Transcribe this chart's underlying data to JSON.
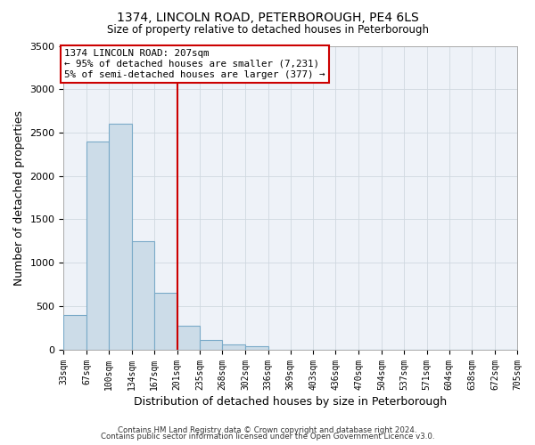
{
  "title": "1374, LINCOLN ROAD, PETERBOROUGH, PE4 6LS",
  "subtitle": "Size of property relative to detached houses in Peterborough",
  "xlabel": "Distribution of detached houses by size in Peterborough",
  "ylabel": "Number of detached properties",
  "bar_color": "#ccdce8",
  "bar_edge_color": "#7aaac8",
  "grid_color": "#d0d8e0",
  "bg_color": "#eef2f8",
  "fig_bg_color": "#ffffff",
  "bin_labels": [
    "33sqm",
    "67sqm",
    "100sqm",
    "134sqm",
    "167sqm",
    "201sqm",
    "235sqm",
    "268sqm",
    "302sqm",
    "336sqm",
    "369sqm",
    "403sqm",
    "436sqm",
    "470sqm",
    "504sqm",
    "537sqm",
    "571sqm",
    "604sqm",
    "638sqm",
    "672sqm",
    "705sqm"
  ],
  "bar_values": [
    400,
    2400,
    2600,
    1250,
    650,
    270,
    110,
    60,
    40,
    0,
    0,
    0,
    0,
    0,
    0,
    0,
    0,
    0,
    0,
    0
  ],
  "bin_edges": [
    33,
    67,
    100,
    134,
    167,
    201,
    235,
    268,
    302,
    336,
    369,
    403,
    436,
    470,
    504,
    537,
    571,
    604,
    638,
    672,
    705
  ],
  "vline_x": 201,
  "vline_color": "#cc0000",
  "ylim": [
    0,
    3500
  ],
  "yticks": [
    0,
    500,
    1000,
    1500,
    2000,
    2500,
    3000,
    3500
  ],
  "annotation_line1": "1374 LINCOLN ROAD: 207sqm",
  "annotation_line2": "← 95% of detached houses are smaller (7,231)",
  "annotation_line3": "5% of semi-detached houses are larger (377) →",
  "annotation_box_color": "#cc0000",
  "footer_line1": "Contains HM Land Registry data © Crown copyright and database right 2024.",
  "footer_line2": "Contains public sector information licensed under the Open Government Licence v3.0."
}
